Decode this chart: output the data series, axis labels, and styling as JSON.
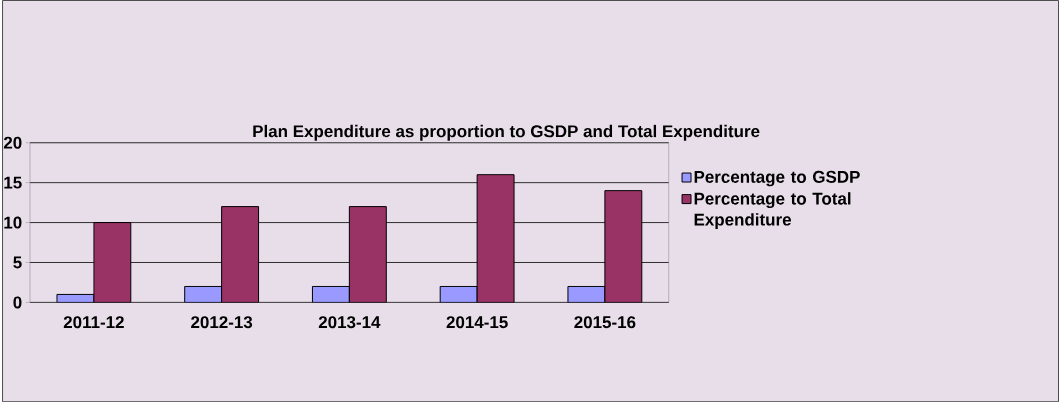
{
  "chart_data": {
    "type": "bar",
    "title": "Plan Expenditure as proportion to GSDP and Total Expenditure",
    "categories": [
      "2011-12",
      "2012-13",
      "2013-14",
      "2014-15",
      "2015-16"
    ],
    "series": [
      {
        "name": "Percentage to GSDP",
        "color": "#9999ff",
        "values": [
          1,
          2,
          2,
          2,
          2
        ]
      },
      {
        "name": "Percentage to Total Expenditure",
        "color": "#993366",
        "values": [
          10,
          12,
          12,
          16,
          14
        ]
      }
    ],
    "ylim": [
      0,
      20
    ],
    "yticks": [
      0,
      5,
      10,
      15,
      20
    ],
    "grid": "y",
    "legend": "right"
  }
}
